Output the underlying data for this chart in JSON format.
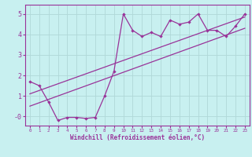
{
  "xlabel": "Windchill (Refroidissement éolien,°C)",
  "bg_color": "#c8f0f0",
  "line_color": "#993399",
  "grid_color": "#b0d8d8",
  "xlim": [
    -0.5,
    23.5
  ],
  "ylim": [
    -0.45,
    5.45
  ],
  "xticks": [
    0,
    1,
    2,
    3,
    4,
    5,
    6,
    7,
    8,
    9,
    10,
    11,
    12,
    13,
    14,
    15,
    16,
    17,
    18,
    19,
    20,
    21,
    22,
    23
  ],
  "yticks": [
    0,
    1,
    2,
    3,
    4,
    5
  ],
  "ytick_labels": [
    "-0",
    "1",
    "2",
    "3",
    "4",
    "5"
  ],
  "data_x": [
    0,
    1,
    2,
    3,
    4,
    5,
    6,
    7,
    8,
    9,
    10,
    11,
    12,
    13,
    14,
    15,
    16,
    17,
    18,
    19,
    20,
    21,
    22,
    23
  ],
  "data_y": [
    1.7,
    1.5,
    0.7,
    -0.2,
    -0.05,
    -0.05,
    -0.1,
    -0.05,
    1.0,
    2.2,
    5.0,
    4.2,
    3.9,
    4.1,
    3.9,
    4.7,
    4.5,
    4.6,
    5.0,
    4.2,
    4.2,
    3.9,
    4.4,
    5.0
  ],
  "line1_x": [
    0,
    23
  ],
  "line1_y": [
    0.5,
    4.3
  ],
  "line2_x": [
    0,
    23
  ],
  "line2_y": [
    1.1,
    4.85
  ]
}
